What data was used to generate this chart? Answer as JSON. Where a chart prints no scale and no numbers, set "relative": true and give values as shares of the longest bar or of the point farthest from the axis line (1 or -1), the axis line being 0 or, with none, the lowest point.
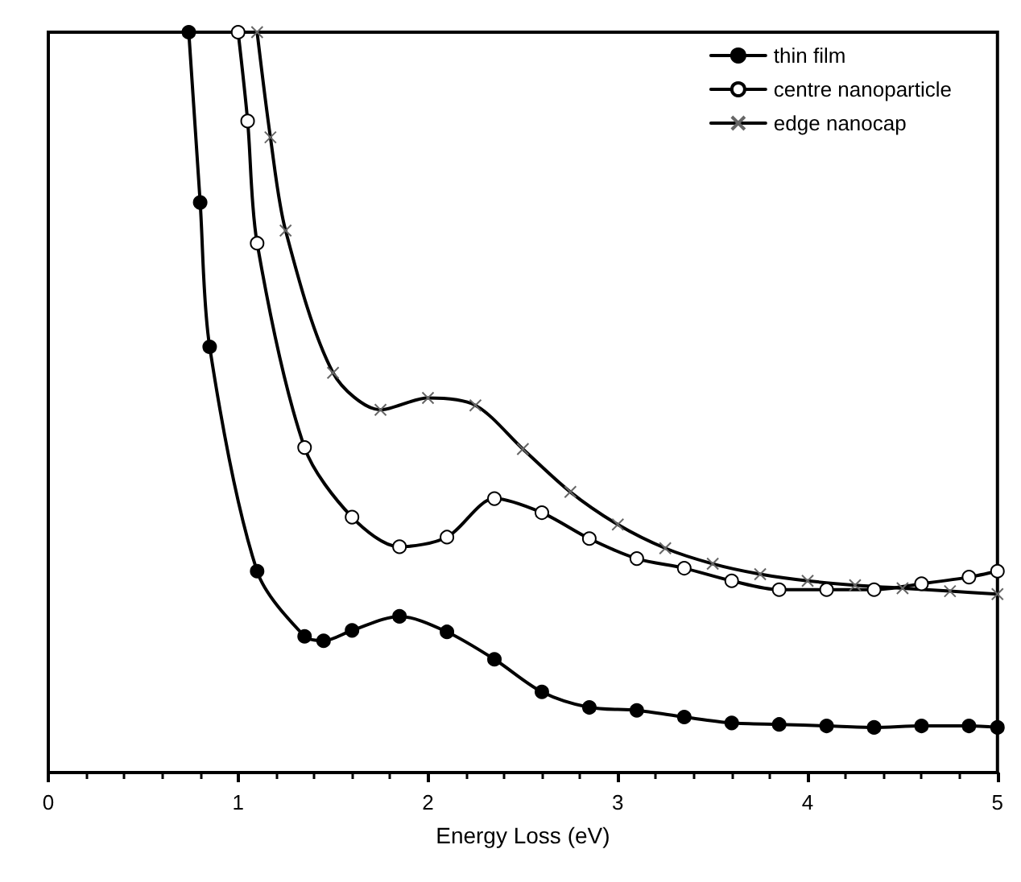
{
  "chart_data": {
    "type": "line",
    "xlabel": "Energy Loss (eV)",
    "relative": true,
    "xlim": [
      0,
      5
    ],
    "xticks": [
      0,
      1,
      2,
      3,
      4,
      5
    ],
    "tick_labels": "x",
    "legend": "top right",
    "grid": false,
    "line_style": "solid",
    "series": [
      {
        "name": "thin film",
        "color": "#000000",
        "marker": "circle",
        "x": [
          0.74,
          0.8,
          0.85,
          1.1,
          1.35,
          1.45,
          1.6,
          1.85,
          2.1,
          2.35,
          2.6,
          2.85,
          3.1,
          3.35,
          3.6,
          3.85,
          4.1,
          4.35,
          4.6,
          4.85,
          5.0
        ],
        "values": [
          1,
          0.77,
          0.575,
          0.272,
          0.184,
          0.178,
          0.192,
          0.211,
          0.19,
          0.153,
          0.109,
          0.088,
          0.084,
          0.075,
          0.067,
          0.065,
          0.063,
          0.061,
          0.063,
          0.063,
          0.061
        ]
      },
      {
        "name": "centre nanoparticle",
        "color": "#000000",
        "marker": "circle",
        "x": [
          1.0,
          1.05,
          1.1,
          1.35,
          1.6,
          1.85,
          2.1,
          2.35,
          2.6,
          2.85,
          3.1,
          3.35,
          3.6,
          3.85,
          4.1,
          4.35,
          4.6,
          4.85,
          5.0
        ],
        "values": [
          1,
          0.88,
          0.715,
          0.439,
          0.345,
          0.305,
          0.318,
          0.37,
          0.351,
          0.316,
          0.289,
          0.276,
          0.259,
          0.247,
          0.247,
          0.247,
          0.255,
          0.264,
          0.272
        ]
      },
      {
        "name": "edge nanocap",
        "color": "#000000",
        "marker": "cross",
        "x": [
          1.1,
          1.17,
          1.25,
          1.5,
          1.75,
          2.0,
          2.25,
          2.5,
          2.75,
          3.0,
          3.25,
          3.5,
          3.75,
          4.0,
          4.25,
          4.5,
          4.75,
          5.0
        ],
        "values": [
          1,
          0.858,
          0.732,
          0.54,
          0.49,
          0.506,
          0.496,
          0.437,
          0.379,
          0.335,
          0.303,
          0.282,
          0.268,
          0.259,
          0.253,
          0.249,
          0.245,
          0.241
        ]
      }
    ]
  }
}
